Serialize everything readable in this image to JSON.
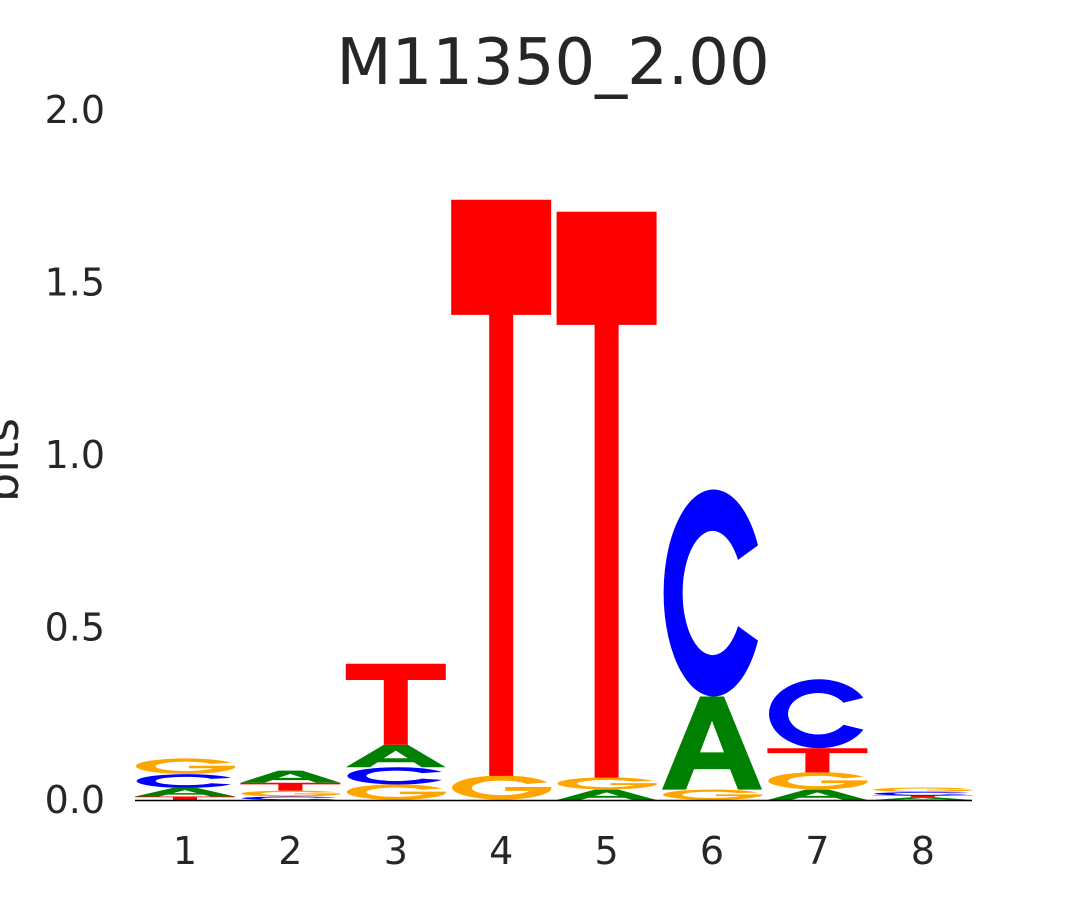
{
  "chart_data": {
    "type": "sequence-logo",
    "title": "M11350_2.00",
    "ylabel": "bits",
    "xlabel": "",
    "ylim": [
      0,
      2.0
    ],
    "yticks": [
      "0.0",
      "0.5",
      "1.0",
      "1.5",
      "2.0"
    ],
    "categories": [
      "1",
      "2",
      "3",
      "4",
      "5",
      "6",
      "7",
      "8"
    ],
    "colors": {
      "A": "#008000",
      "C": "#0000ff",
      "G": "#ffa500",
      "T": "#ff0000"
    },
    "grid": false,
    "positions": [
      [
        {
          "base": "T",
          "bits": 0.01
        },
        {
          "base": "A",
          "bits": 0.025
        },
        {
          "base": "C",
          "bits": 0.04
        },
        {
          "base": "G",
          "bits": 0.045
        }
      ],
      [
        {
          "base": "C",
          "bits": 0.01
        },
        {
          "base": "G",
          "bits": 0.017
        },
        {
          "base": "T",
          "bits": 0.023
        },
        {
          "base": "A",
          "bits": 0.035
        }
      ],
      [
        {
          "base": "G",
          "bits": 0.045
        },
        {
          "base": "C",
          "bits": 0.05
        },
        {
          "base": "A",
          "bits": 0.065
        },
        {
          "base": "T",
          "bits": 0.235
        }
      ],
      [
        {
          "base": "G",
          "bits": 0.07
        },
        {
          "base": "T",
          "bits": 1.67
        }
      ],
      [
        {
          "base": "A",
          "bits": 0.03
        },
        {
          "base": "G",
          "bits": 0.035
        },
        {
          "base": "T",
          "bits": 1.64
        }
      ],
      [
        {
          "base": "G",
          "bits": 0.03
        },
        {
          "base": "A",
          "bits": 0.27
        },
        {
          "base": "C",
          "bits": 0.6
        }
      ],
      [
        {
          "base": "A",
          "bits": 0.03
        },
        {
          "base": "G",
          "bits": 0.05
        },
        {
          "base": "T",
          "bits": 0.07
        },
        {
          "base": "C",
          "bits": 0.2
        }
      ],
      [
        {
          "base": "A",
          "bits": 0.008
        },
        {
          "base": "T",
          "bits": 0.005
        },
        {
          "base": "C",
          "bits": 0.01
        },
        {
          "base": "G",
          "bits": 0.013
        }
      ]
    ]
  }
}
